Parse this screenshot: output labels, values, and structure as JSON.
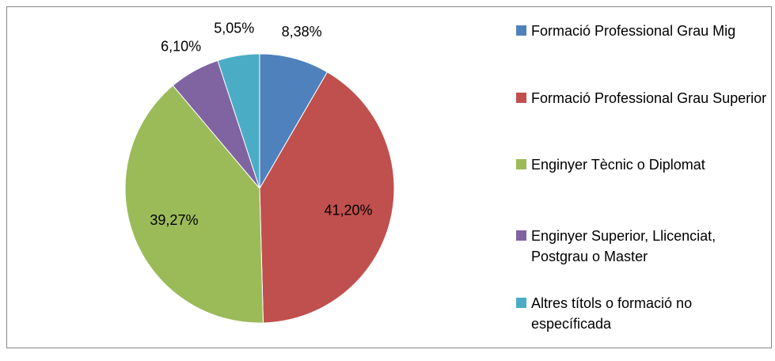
{
  "chart_data": {
    "type": "pie",
    "categories": [
      "Formació Professional Grau Mig",
      "Formació Professional Grau Superior",
      "Enginyer Tècnic o Diplomat",
      "Enginyer Superior, Llicenciat, Postgrau o Master",
      "Altres títols o formació no específicada"
    ],
    "values": [
      8.38,
      41.2,
      39.27,
      6.1,
      5.05
    ],
    "value_labels": [
      "8,38%",
      "41,20%",
      "39,27%",
      "6,10%",
      "5,05%"
    ],
    "colors": [
      "#4f81bd",
      "#c0504d",
      "#9bbb59",
      "#8064a2",
      "#4bacc6"
    ],
    "legend": "right"
  }
}
